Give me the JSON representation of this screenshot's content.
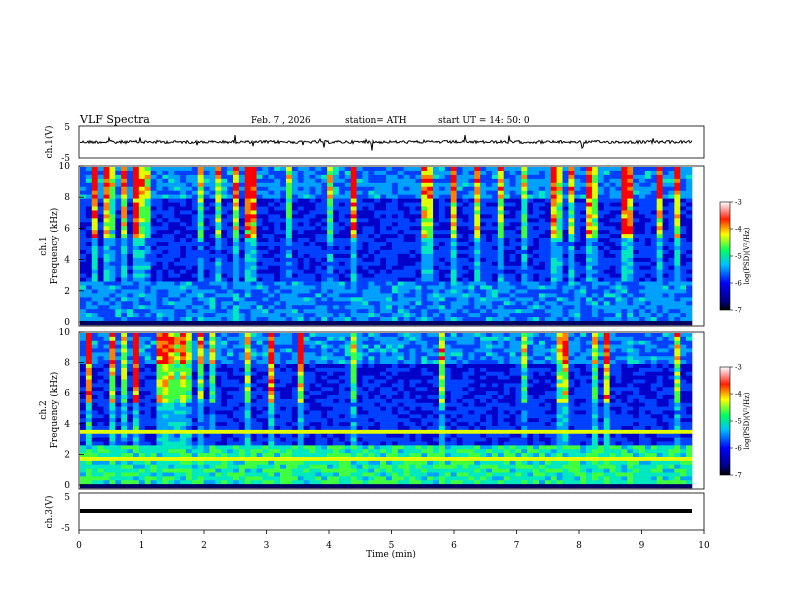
{
  "header": {
    "title": "VLF  Spectra",
    "date": "Feb. 7  , 2026",
    "station": "station= ATH",
    "start": "start  UT  =   14: 50: 0"
  },
  "chart_data": [
    {
      "type": "line",
      "ylabel": "ch.1(V)",
      "ylim": [
        -5,
        5
      ],
      "yticks": [
        "5",
        "-5"
      ],
      "xlim": [
        0,
        10
      ],
      "values_description_note": ""
    },
    {
      "type": "heatmap",
      "ylabel_top": "ch.1",
      "ylabel": "Frequency  (kHz)",
      "ylim": [
        0,
        10
      ],
      "yticks": [
        "0",
        "2",
        "4",
        "6",
        "8",
        "10"
      ],
      "xlim": [
        0,
        10
      ],
      "colorbar": {
        "label": "log(PSD)(V²/Hz)",
        "ticks": [
          "-3",
          "-4",
          "-5",
          "-6",
          "-7"
        ]
      }
    },
    {
      "type": "heatmap",
      "ylabel_top": "ch.2",
      "ylabel": "Frequency  (kHz)",
      "ylim": [
        0,
        10
      ],
      "yticks": [
        "0",
        "2",
        "4",
        "6",
        "8",
        "10"
      ],
      "xlim": [
        0,
        10
      ],
      "colorbar": {
        "label": "log(PSD)(V²/Hz)",
        "ticks": [
          "-3",
          "-4",
          "-5",
          "-6",
          "-7"
        ]
      }
    },
    {
      "type": "line",
      "ylabel": "ch.3(V)",
      "ylim": [
        -5,
        5
      ],
      "yticks": [
        "5",
        "-5"
      ],
      "xlim": [
        0,
        10
      ],
      "xlabel": "Time  (min)",
      "xticks": [
        "0",
        "1",
        "2",
        "3",
        "4",
        "5",
        "6",
        "7",
        "8",
        "9",
        "10"
      ]
    }
  ]
}
